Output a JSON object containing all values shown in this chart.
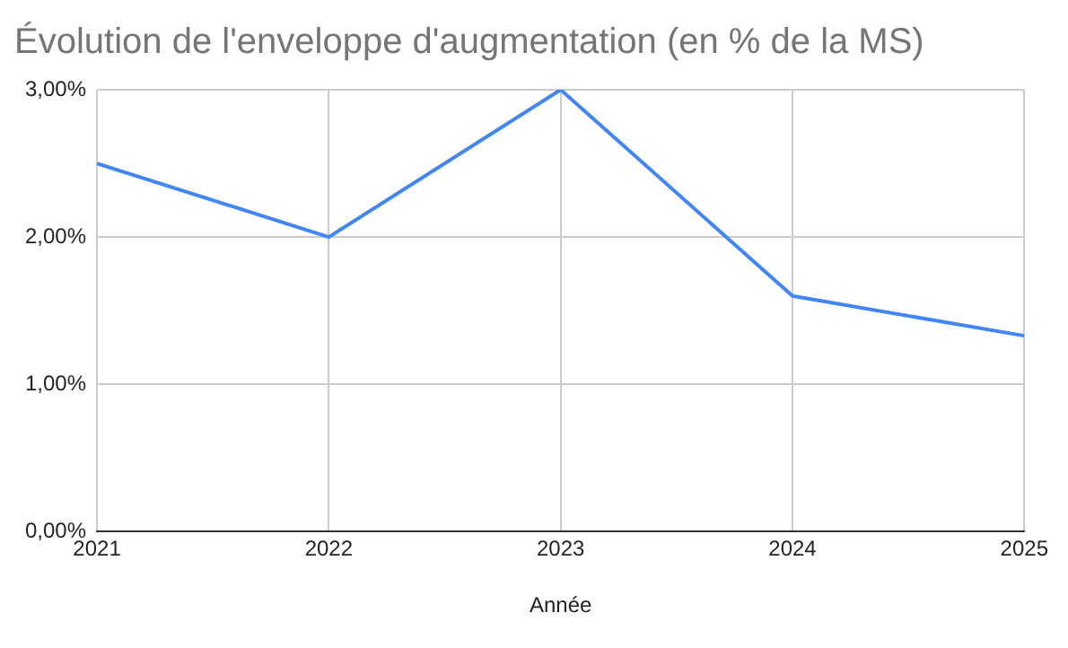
{
  "chart_data": {
    "type": "line",
    "title": "Évolution de l'enveloppe d'augmentation (en % de la MS)",
    "xlabel": "Année",
    "x": [
      2021,
      2022,
      2023,
      2024,
      2025
    ],
    "series": [
      {
        "color": "#4285f4",
        "values": [
          2.5,
          2.0,
          3.0,
          1.6,
          1.33
        ]
      }
    ],
    "xlim": [
      2021,
      2025
    ],
    "xticks": [
      2021,
      2022,
      2023,
      2024,
      2025
    ],
    "ylim": [
      0,
      3
    ],
    "yticks": [
      {
        "value": 0,
        "label": "0,00%"
      },
      {
        "value": 1,
        "label": "1,00%"
      },
      {
        "value": 2,
        "label": "2,00%"
      },
      {
        "value": 3,
        "label": "3,00%"
      }
    ],
    "grid": true,
    "legend": false,
    "marker": "none",
    "line_style": "solid"
  }
}
